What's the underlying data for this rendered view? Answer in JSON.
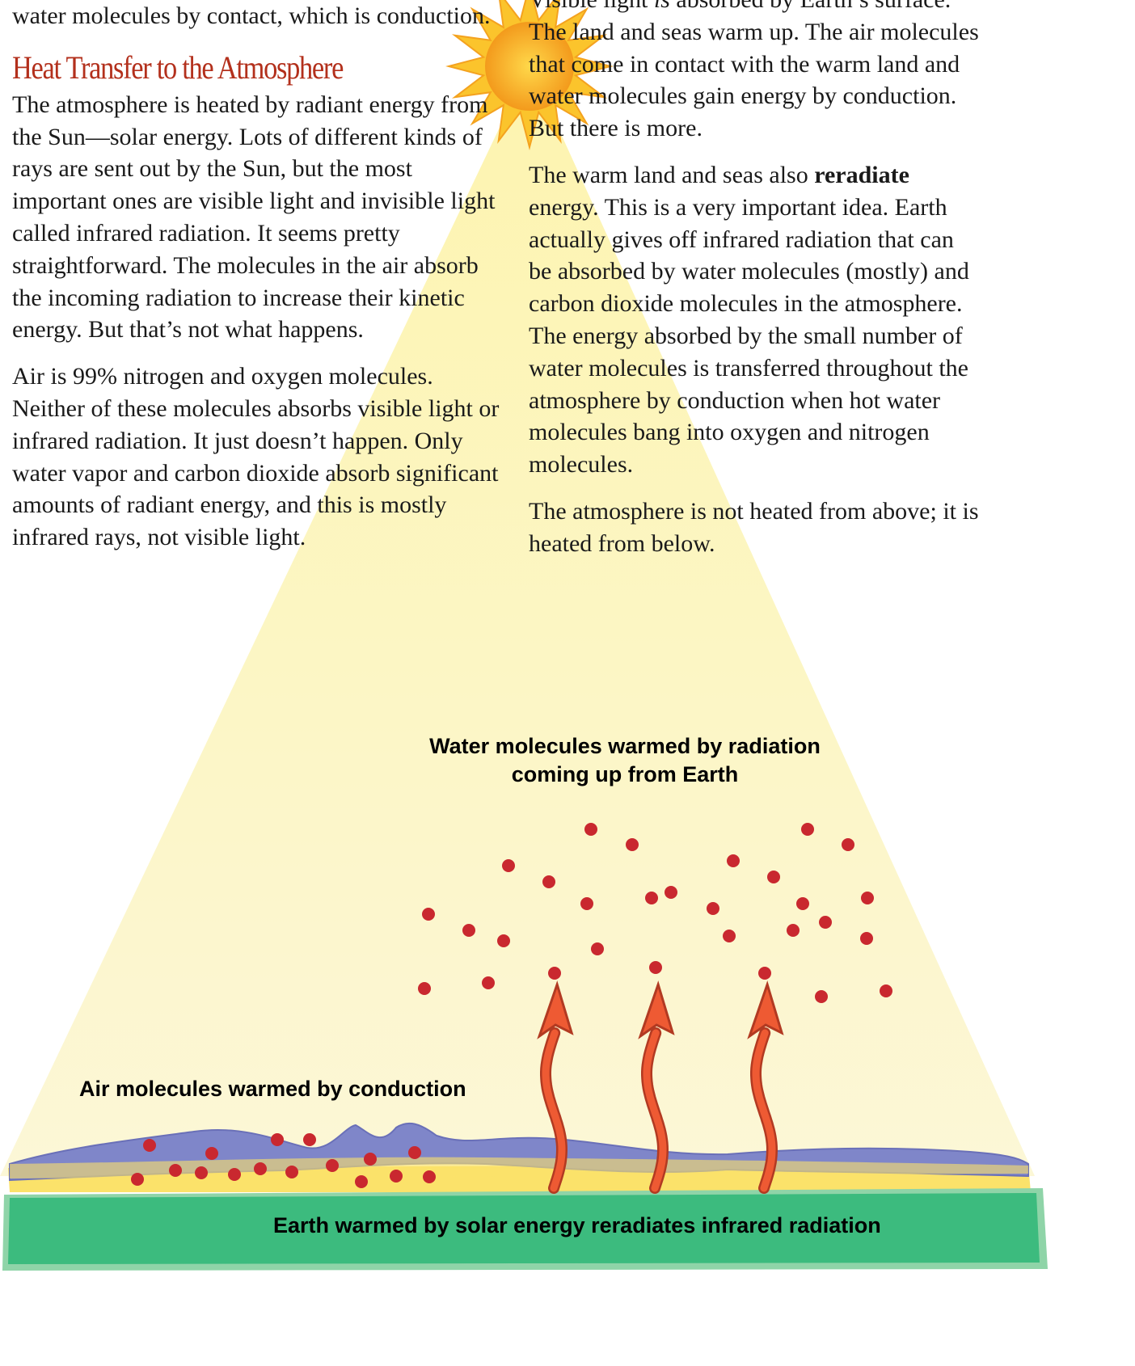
{
  "left": {
    "intro": "water molecules by contact, which is conduction.",
    "heading": "Heat Transfer to the Atmosphere",
    "paragraphs": [
      "The atmosphere is heated by radiant energy from the Sun—solar energy.  Lots of different kinds of rays are sent out by the Sun, but the most important ones are visible light and invisible light called infrared radiation.  It seems pretty straightforward.  The molecules in the air absorb the incoming radiation to increase their kinetic energy.  But that’s not what happens.",
      "Air is 99% nitrogen and oxygen molecules.  Neither of these molecules absorbs visible light or infrared radiation.  It just doesn’t happen.  Only water vapor and carbon dioxide absorb significant amounts of radiant energy, and this is mostly infrared rays, not visible light."
    ]
  },
  "right": {
    "paragraphs": [
      [
        "Visible light ",
        "is",
        " absorbed by Earth’s surface.  The land and seas warm up.  The air molecules that come in contact with the warm land and water molecules gain energy by conduction.  But there is more."
      ],
      [
        "The warm land and seas also ",
        "reradiate",
        " energy.  This is a very important idea.  Earth actually gives off infrared radiation that can be absorbed by water molecules (mostly) and carbon dioxide molecules in the atmosphere.  The energy absorbed by the small number of water molecules is transferred throughout the atmosphere by conduction when hot water molecules bang into oxygen and nitrogen molecules."
      ],
      [
        "The atmosphere is not heated from above; it is heated from below."
      ]
    ]
  },
  "illustration": {
    "water_label": [
      "Water molecules warmed by radiation",
      "coming up from Earth"
    ],
    "air_label": "Air molecules warmed by conduction",
    "earth_label": "Earth warmed by solar energy reradiates infrared radiation"
  }
}
